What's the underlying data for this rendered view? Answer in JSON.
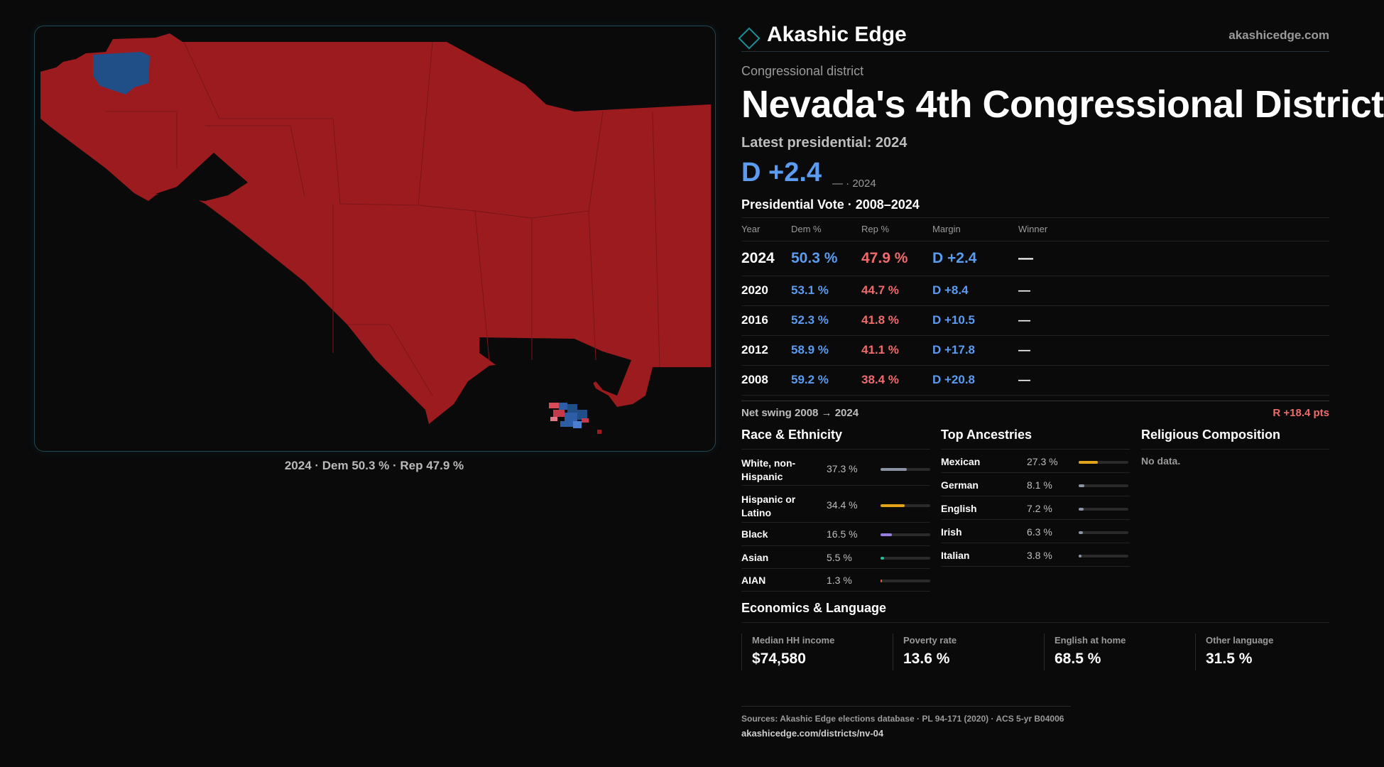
{
  "brand": {
    "name": "Akashic Edge",
    "url": "akashicedge.com"
  },
  "kicker": "Congressional district",
  "title": "Nevada's 4th Congressional District",
  "latest_label": "Latest presidential: 2024",
  "latest_margin": "D +2.4",
  "latest_sub": "— · 2024",
  "vote_heading": "Presidential Vote · 2008–2024",
  "vote_columns": [
    "Year",
    "Dem %",
    "Rep %",
    "Margin",
    "Winner"
  ],
  "vote_rows": [
    {
      "year": "2024",
      "dem": "50.3 %",
      "rep": "47.9 %",
      "margin": "D +2.4",
      "winner": "—"
    },
    {
      "year": "2020",
      "dem": "53.1 %",
      "rep": "44.7 %",
      "margin": "D +8.4",
      "winner": "—"
    },
    {
      "year": "2016",
      "dem": "52.3 %",
      "rep": "41.8 %",
      "margin": "D +10.5",
      "winner": "—"
    },
    {
      "year": "2012",
      "dem": "58.9 %",
      "rep": "41.1 %",
      "margin": "D +17.8",
      "winner": "—"
    },
    {
      "year": "2008",
      "dem": "59.2 %",
      "rep": "38.4 %",
      "margin": "D +20.8",
      "winner": "—"
    }
  ],
  "swing": {
    "label": "Net swing 2008 → 2024",
    "value": "R +18.4 pts"
  },
  "race": {
    "heading": "Race & Ethnicity",
    "rows": [
      {
        "label": "White, non-Hispanic",
        "pct_text": "37.3 %",
        "value": 37.3,
        "color": "#8a93a3"
      },
      {
        "label": "Hispanic or Latino",
        "pct_text": "34.4 %",
        "value": 34.4,
        "color": "#e3a31a"
      },
      {
        "label": "Black",
        "pct_text": "16.5 %",
        "value": 16.5,
        "color": "#9a7be0"
      },
      {
        "label": "Asian",
        "pct_text": "5.5 %",
        "value": 5.5,
        "color": "#2fb39a"
      },
      {
        "label": "AIAN",
        "pct_text": "1.3 %",
        "value": 1.3,
        "color": "#d9663a"
      }
    ]
  },
  "ancestry": {
    "heading": "Top Ancestries",
    "rows": [
      {
        "label": "Mexican",
        "pct_text": "27.3 %",
        "value": 27.3,
        "color": "#e3a31a"
      },
      {
        "label": "German",
        "pct_text": "8.1 %",
        "value": 8.1,
        "color": "#8a93a3"
      },
      {
        "label": "English",
        "pct_text": "7.2 %",
        "value": 7.2,
        "color": "#8a93a3"
      },
      {
        "label": "Irish",
        "pct_text": "6.3 %",
        "value": 6.3,
        "color": "#8a93a3"
      },
      {
        "label": "Italian",
        "pct_text": "3.8 %",
        "value": 3.8,
        "color": "#8a93a3"
      }
    ]
  },
  "religion": {
    "heading": "Religious Composition",
    "text": "No data."
  },
  "economics": {
    "heading": "Economics & Language",
    "cells": [
      {
        "label": "Median HH income",
        "value": "$74,580"
      },
      {
        "label": "Poverty rate",
        "value": "13.6 %"
      },
      {
        "label": "English at home",
        "value": "68.5 %"
      },
      {
        "label": "Other language",
        "value": "31.5 %"
      }
    ]
  },
  "map_caption": "2024 · Dem 50.3 % · Rep 47.9 %",
  "map_colors": {
    "rep": "#9c1b1f",
    "dem": "#1f4f86",
    "background": "#0a0a0b"
  },
  "sources": {
    "line1": "Sources: Akashic Edge elections database · PL 94-171 (2020) · ACS 5-yr B04006",
    "line2": "akashicedge.com/districts/nv-04"
  }
}
